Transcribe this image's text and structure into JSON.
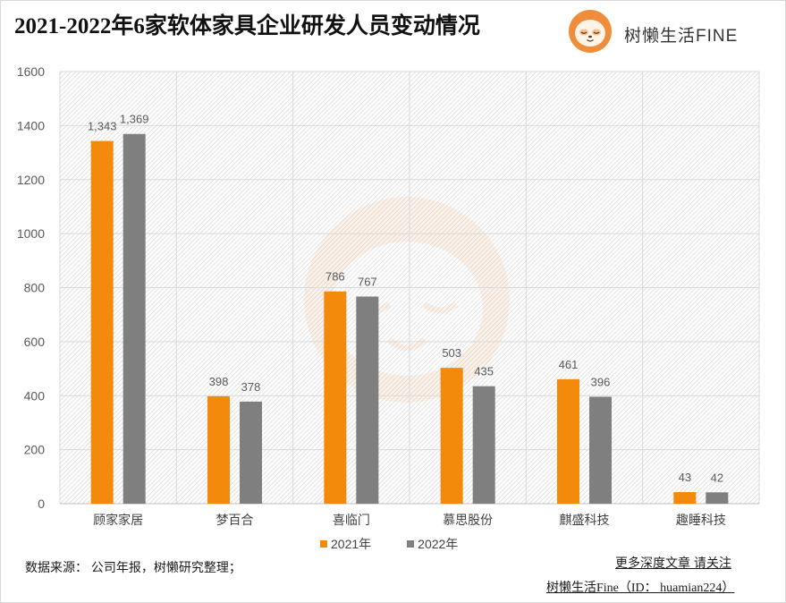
{
  "chart_data": {
    "type": "bar",
    "title": "2021-2022年6家软体家具企业研发人员变动情况",
    "categories": [
      "顾家家居",
      "梦百合",
      "喜临门",
      "慕思股份",
      "麒盛科技",
      "趣睡科技"
    ],
    "series": [
      {
        "name": "2021年",
        "color": "#F38A0C",
        "values": [
          1343,
          398,
          786,
          503,
          461,
          43
        ],
        "labels": [
          "1,343",
          "398",
          "786",
          "503",
          "461",
          "43"
        ]
      },
      {
        "name": "2022年",
        "color": "#7F7F7F",
        "values": [
          1369,
          378,
          767,
          435,
          396,
          42
        ],
        "labels": [
          "1,369",
          "378",
          "767",
          "435",
          "396",
          "42"
        ]
      }
    ],
    "ylim": [
      0,
      1600
    ],
    "yticks": [
      0,
      200,
      400,
      600,
      800,
      1000,
      1200,
      1400,
      1600
    ],
    "grid": true,
    "legend": "bottom-center"
  },
  "brand": {
    "name": "树懒生活FINE",
    "icon": "sloth-logo-icon",
    "color": "#F08D3C"
  },
  "watermark": {
    "icon": "sloth-watermark-icon"
  },
  "footer": {
    "source": "数据来源：  公司年报，树懒研究整理；",
    "follow": "更多深度文章 请关注",
    "account": "树懒生活Fine（ID：  huamian224）"
  }
}
